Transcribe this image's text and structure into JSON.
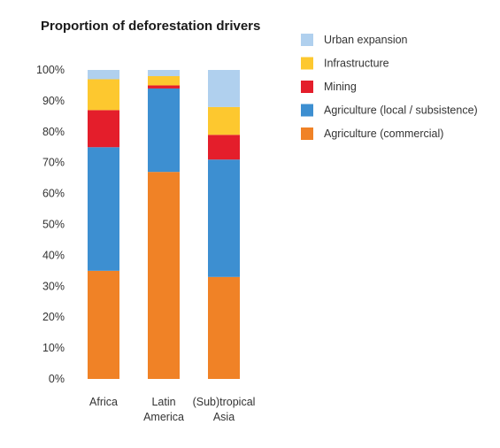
{
  "chart_data": {
    "type": "bar",
    "stacked": true,
    "title": "Proportion of deforestation drivers",
    "xlabel": "",
    "ylabel": "",
    "ylim": [
      0,
      100
    ],
    "y_ticks": [
      "0%",
      "10%",
      "20%",
      "30%",
      "40%",
      "50%",
      "60%",
      "70%",
      "80%",
      "90%",
      "100%"
    ],
    "categories": [
      [
        "Africa"
      ],
      [
        "Latin",
        "America"
      ],
      [
        "(Sub)tropical",
        "Asia"
      ]
    ],
    "series": [
      {
        "name": "Agriculture (commercial)",
        "color": "#f08226",
        "values": [
          35,
          67,
          33
        ]
      },
      {
        "name": "Agriculture (local / subsistence)",
        "color": "#3d8fd1",
        "values": [
          40,
          27,
          38
        ]
      },
      {
        "name": "Mining",
        "color": "#e41e2b",
        "values": [
          12,
          1,
          8
        ]
      },
      {
        "name": "Infrastructure",
        "color": "#fdc82f",
        "values": [
          10,
          3,
          9
        ]
      },
      {
        "name": "Urban expansion",
        "color": "#b0d0ee",
        "values": [
          3,
          2,
          12
        ]
      }
    ],
    "legend_order": [
      4,
      3,
      2,
      1,
      0
    ],
    "legend_position": "top-right",
    "grid": false
  }
}
